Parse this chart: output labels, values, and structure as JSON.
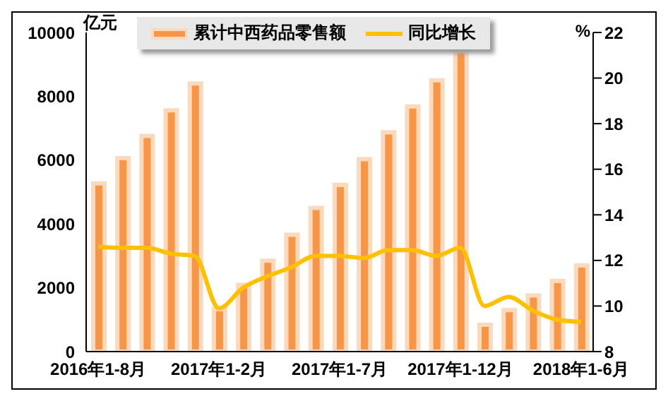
{
  "chart_data": {
    "type": "bar",
    "ylabel": "亿元",
    "y2label": "%",
    "categories": [
      "2016年1-8月",
      null,
      null,
      null,
      null,
      "2017年1-2月",
      null,
      null,
      null,
      null,
      "2017年1-7月",
      null,
      null,
      null,
      null,
      "2017年1-12月",
      null,
      null,
      null,
      null,
      "2018年1-6月"
    ],
    "series": [
      {
        "name": "累计中西药品零售额",
        "color": "#f79646",
        "values": [
          5270,
          6060,
          6760,
          7560,
          8400,
          1330,
          2090,
          2850,
          3660,
          4500,
          5220,
          6030,
          6870,
          7680,
          8500,
          9420,
          840,
          1300,
          1760,
          2210,
          2700
        ]
      },
      {
        "name": "同比增长",
        "type": "line",
        "axis": "y2",
        "color": "#ffc000",
        "values": [
          12.6,
          12.55,
          12.55,
          12.3,
          12.2,
          9.9,
          10.8,
          11.3,
          11.7,
          12.2,
          12.2,
          12.1,
          12.45,
          12.45,
          12.2,
          12.55,
          10.0,
          10.4,
          9.8,
          9.4,
          9.3
        ]
      }
    ],
    "ylim": [
      0,
      10000
    ],
    "yticks": [
      0,
      2000,
      4000,
      6000,
      8000,
      10000
    ],
    "y2lim": [
      8,
      22
    ],
    "y2ticks": [
      8,
      10,
      12,
      14,
      16,
      18,
      20,
      22
    ],
    "grid": false,
    "legend": "top",
    "marker": "none"
  }
}
